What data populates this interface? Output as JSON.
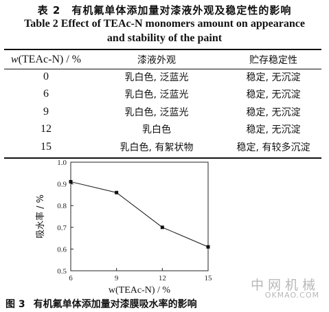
{
  "table_caption": {
    "cn": "表 2　有机氟单体添加量对漆液外观及稳定性的影响",
    "en_line1": "Table 2    Effect of TEAc-N monomers amount on appearance",
    "en_line2": "and stability of the paint"
  },
  "table": {
    "headers": {
      "col1_var": "w",
      "col1_rest": "(TEAc-N) / %",
      "col2": "漆液外观",
      "col3": "贮存稳定性"
    },
    "rows": [
      {
        "amount": "0",
        "appearance": "乳白色, 泛蓝光",
        "stability": "稳定, 无沉淀"
      },
      {
        "amount": "6",
        "appearance": "乳白色, 泛蓝光",
        "stability": "稳定, 无沉淀"
      },
      {
        "amount": "9",
        "appearance": "乳白色, 泛蓝光",
        "stability": "稳定, 无沉淀"
      },
      {
        "amount": "12",
        "appearance": "乳白色",
        "stability": "稳定, 无沉淀"
      },
      {
        "amount": "15",
        "appearance": "乳白色, 有絮状物",
        "stability": "稳定, 有较多沉淀"
      }
    ]
  },
  "chart_data": {
    "type": "line",
    "title": "",
    "xlabel": "w(TEAc-N) / %",
    "ylabel": "吸水率 / %",
    "x": [
      6,
      9,
      12,
      15
    ],
    "y": [
      0.91,
      0.86,
      0.7,
      0.61
    ],
    "xlim": [
      6,
      15
    ],
    "ylim": [
      0.5,
      1.0
    ],
    "xticks": [
      "6",
      "9",
      "12",
      "15"
    ],
    "yticks": [
      "0.5",
      "0.6",
      "0.7",
      "0.8",
      "0.9",
      "1.0"
    ],
    "grid": false,
    "marker": "square",
    "colors": {
      "line": "#111111"
    }
  },
  "figure_caption": {
    "num": "图 3",
    "text": "有机氟单体添加量对漆膜吸水率的影响"
  },
  "watermark": {
    "cn": "中网机械",
    "en": "OKMAO.COM"
  }
}
